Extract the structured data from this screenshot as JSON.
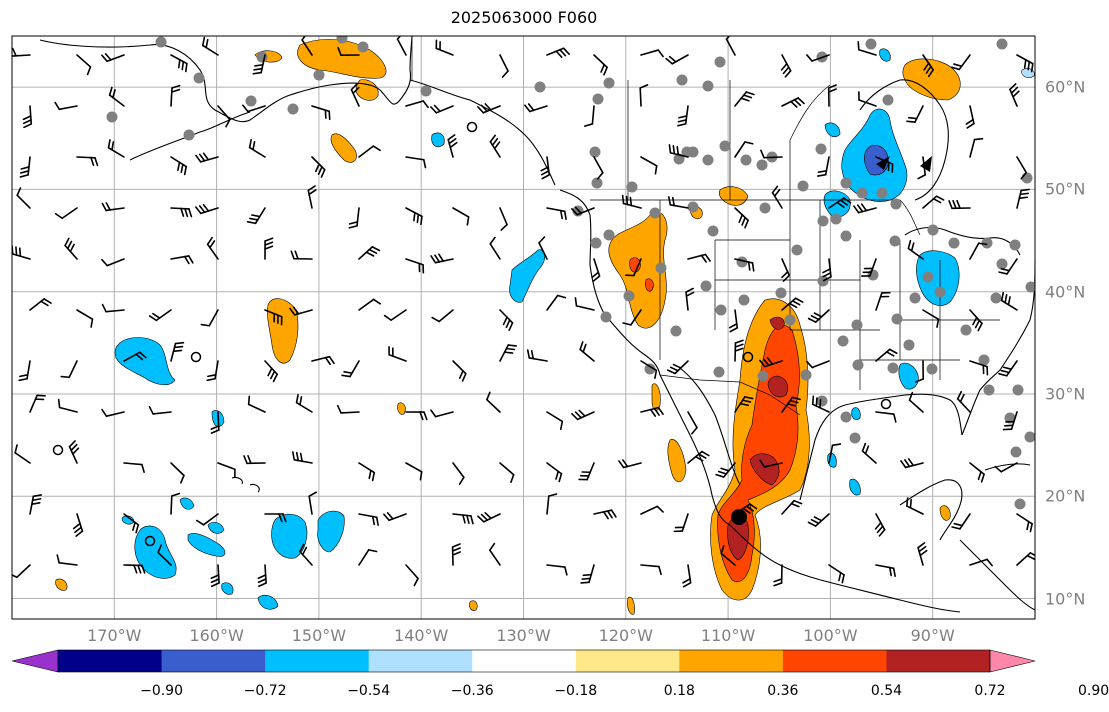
{
  "title": "2025063000 F060",
  "map": {
    "lon_range": [
      -180,
      -80
    ],
    "lat_range": [
      8,
      65
    ],
    "lon_ticks": [
      {
        "value": -170,
        "label": "170°W"
      },
      {
        "value": -160,
        "label": "160°W"
      },
      {
        "value": -150,
        "label": "150°W"
      },
      {
        "value": -140,
        "label": "140°W"
      },
      {
        "value": -130,
        "label": "130°W"
      },
      {
        "value": -120,
        "label": "120°W"
      },
      {
        "value": -110,
        "label": "110°W"
      },
      {
        "value": -100,
        "label": "100°W"
      },
      {
        "value": -90,
        "label": "90°W"
      }
    ],
    "lat_ticks": [
      {
        "value": 60,
        "label": "60°N"
      },
      {
        "value": 50,
        "label": "50°N"
      },
      {
        "value": 40,
        "label": "40°N"
      },
      {
        "value": 30,
        "label": "30°N"
      },
      {
        "value": 20,
        "label": "20°N"
      },
      {
        "value": 10,
        "label": "10°N"
      }
    ],
    "gridlines": true,
    "label_color": "#808080"
  },
  "colorbar": {
    "bounds": [
      -0.9,
      -0.72,
      -0.54,
      -0.36,
      -0.18,
      0.18,
      0.36,
      0.54,
      0.72,
      0.9
    ],
    "labels": [
      "−0.90",
      "−0.72",
      "−0.54",
      "−0.36",
      "−0.18",
      "0.18",
      "0.36",
      "0.54",
      "0.72",
      "0.90"
    ],
    "colors": [
      "#9932cc",
      "#00008b",
      "#3a5fcd",
      "#00bfff",
      "#b0e0ff",
      "#ffffff",
      "#ffe88a",
      "#ffa500",
      "#ff4500",
      "#b22222",
      "#ff88aa"
    ]
  },
  "colors": {
    "neg_strong": "#3a5fcd",
    "neg": "#00bfff",
    "neg_weak": "#b0e0ff",
    "pos_weak": "#ffe88a",
    "pos": "#ffa500",
    "pos_strong": "#ff4500",
    "pos_max": "#b22222",
    "station": "#808080"
  }
}
